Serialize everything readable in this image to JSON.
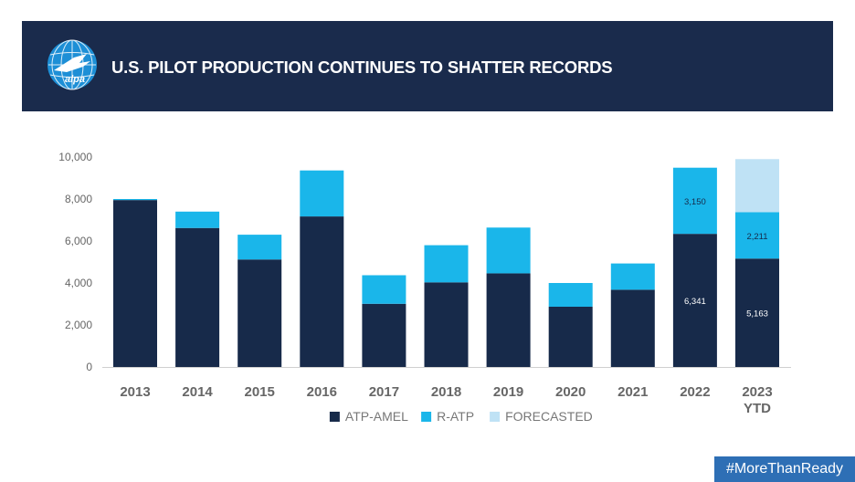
{
  "header": {
    "logo_text": "alpa",
    "title": "U.S. PILOT PRODUCTION CONTINUES TO SHATTER RECORDS"
  },
  "footer": {
    "hashtag": "#MoreThanReady"
  },
  "colors": {
    "header_bg": "#1a2b4c",
    "atp_amel": "#172a4a",
    "r_atp": "#1ab6ea",
    "forecasted": "#bfe2f5",
    "hashtag_bg": "#2e6fb5"
  },
  "chart_data": {
    "type": "bar",
    "stacked": true,
    "categories": [
      "2013",
      "2014",
      "2015",
      "2016",
      "2017",
      "2018",
      "2019",
      "2020",
      "2021",
      "2022",
      "2023\nYTD"
    ],
    "series": [
      {
        "name": "ATP-AMEL",
        "color": "#172a4a",
        "values": [
          7950,
          6620,
          5120,
          7170,
          3010,
          4030,
          4460,
          2870,
          3680,
          6341,
          5163
        ]
      },
      {
        "name": "R-ATP",
        "color": "#1ab6ea",
        "values": [
          50,
          780,
          1180,
          2190,
          1360,
          1770,
          2180,
          1130,
          1250,
          3150,
          2211
        ]
      },
      {
        "name": "FORECASTED",
        "color": "#bfe2f5",
        "values": [
          0,
          0,
          0,
          0,
          0,
          0,
          0,
          0,
          0,
          0,
          2526
        ]
      }
    ],
    "data_labels": [
      {
        "category_index": 9,
        "series": "ATP-AMEL",
        "text": "6,341"
      },
      {
        "category_index": 9,
        "series": "R-ATP",
        "text": "3,150"
      },
      {
        "category_index": 10,
        "series": "ATP-AMEL",
        "text": "5,163"
      },
      {
        "category_index": 10,
        "series": "R-ATP",
        "text": "2,211"
      }
    ],
    "y_ticks": [
      0,
      2000,
      4000,
      6000,
      8000,
      10000
    ],
    "y_tick_labels": [
      "0",
      "2,000",
      "4,000",
      "6,000",
      "8,000",
      "10,000"
    ],
    "ylim": [
      0,
      10000
    ],
    "grid": false,
    "legend_position": "bottom-center",
    "title": "",
    "xlabel": "",
    "ylabel": ""
  }
}
